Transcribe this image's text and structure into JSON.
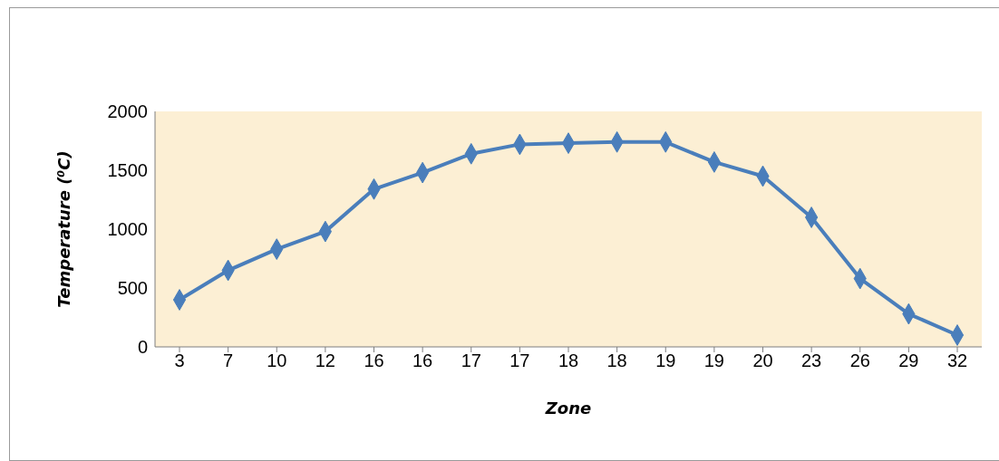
{
  "chart_data": {
    "type": "line",
    "xlabel": "Zone",
    "ylabel": "Temperature (⁰C)",
    "categories": [
      "3",
      "7",
      "10",
      "12",
      "16",
      "16",
      "17",
      "17",
      "18",
      "18",
      "19",
      "19",
      "20",
      "23",
      "26",
      "29",
      "32"
    ],
    "series": [
      {
        "color": "#4a7ebb",
        "values": [
          400,
          650,
          830,
          980,
          1340,
          1480,
          1640,
          1720,
          1730,
          1740,
          1740,
          1570,
          1450,
          1100,
          580,
          280,
          100
        ]
      }
    ],
    "ylim": [
      0,
      2000
    ],
    "yticks": [
      0,
      500,
      1000,
      1500,
      2000
    ],
    "grid": false,
    "legend": false,
    "marker": "diamond",
    "line_style": "solid"
  }
}
